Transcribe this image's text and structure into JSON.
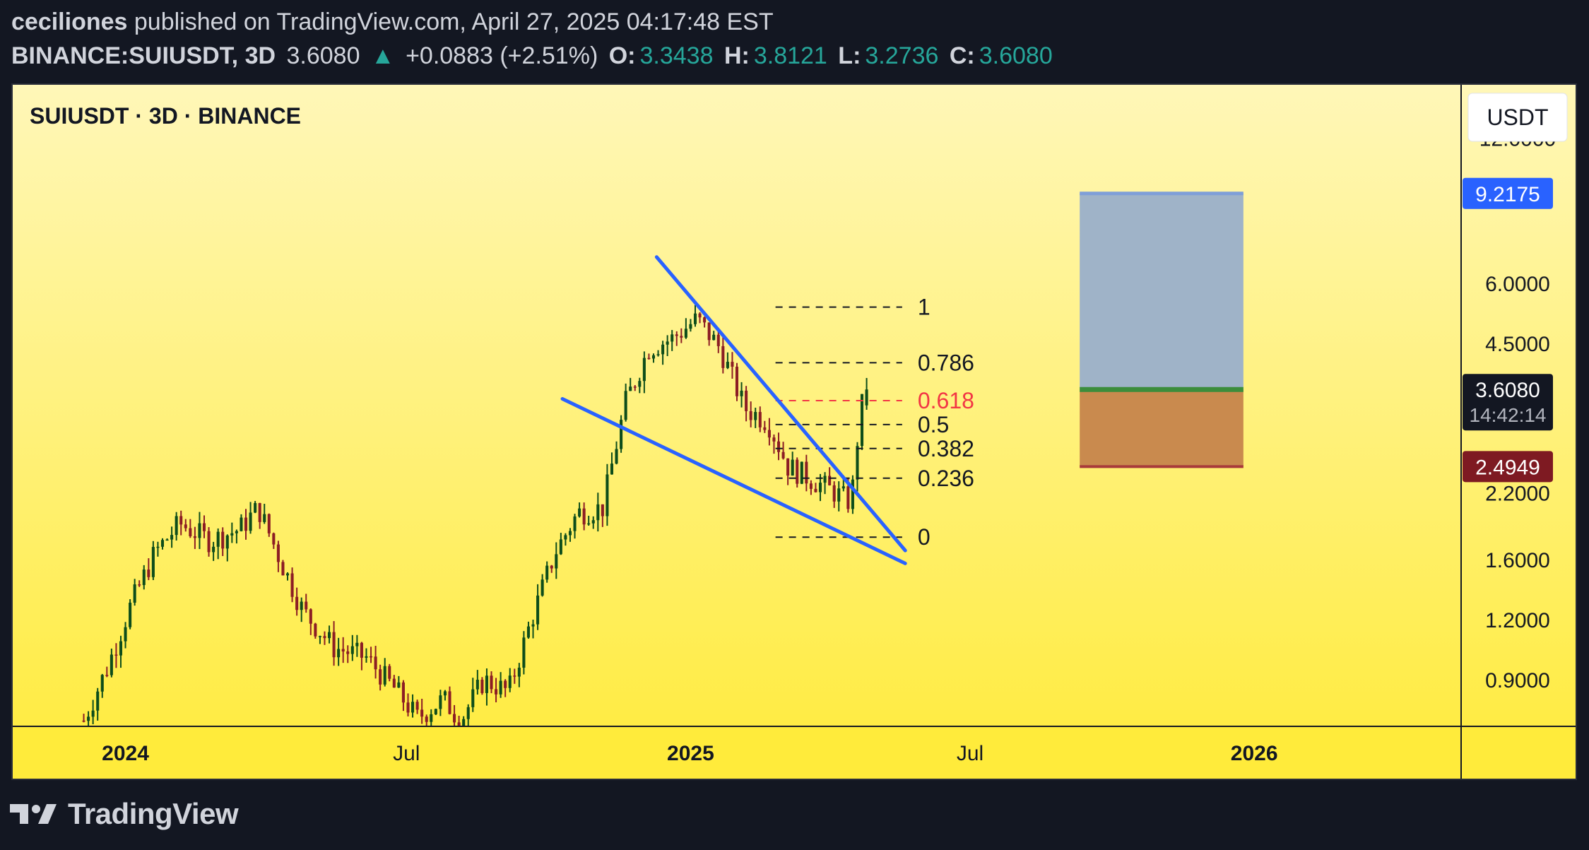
{
  "header": {
    "author": "ceciliones",
    "published_text": "published on TradingView.com, April 27, 2025 04:17:48 EST",
    "symbol": "BINANCE:SUIUSDT, 3D",
    "last_price": "3.6080",
    "change_arrow": "▲",
    "change": "+0.0883 (+2.51%)",
    "open_label": "O:",
    "open": "3.3438",
    "high_label": "H:",
    "high": "3.8121",
    "low_label": "L:",
    "low": "3.2736",
    "close_label": "C:",
    "close": "3.6080"
  },
  "footer": {
    "brand": "TradingView",
    "logo_icon": "tradingview-logo-icon"
  },
  "chart_data": {
    "type": "candlestick",
    "title": "SUIUSDT · 3D · BINANCE",
    "currency": "USDT",
    "scale": "log",
    "ylim": [
      0.72,
      15.5
    ],
    "xlim": [
      "2023-10-20",
      "2026-05-15"
    ],
    "y_ticks": [
      {
        "value": 12.0,
        "label": "12.0000"
      },
      {
        "value": 6.0,
        "label": "6.0000"
      },
      {
        "value": 4.5,
        "label": "4.5000"
      },
      {
        "value": 2.2,
        "label": "2.2000"
      },
      {
        "value": 1.6,
        "label": "1.6000"
      },
      {
        "value": 1.2,
        "label": "1.2000"
      },
      {
        "value": 0.9,
        "label": "0.9000"
      }
    ],
    "x_ticks": [
      {
        "date": "2024-01-01",
        "label": "2024",
        "bold": true
      },
      {
        "date": "2024-07-01",
        "label": "Jul",
        "bold": false
      },
      {
        "date": "2025-01-01",
        "label": "2025",
        "bold": true
      },
      {
        "date": "2025-07-01",
        "label": "Jul",
        "bold": false
      },
      {
        "date": "2026-01-01",
        "label": "2026",
        "bold": true
      }
    ],
    "price_labels": [
      {
        "value": 9.2175,
        "label": "9.2175",
        "color": "#2962ff"
      },
      {
        "value": 3.608,
        "label": "3.6080",
        "sublabel": "14:42:14",
        "color": "#131722"
      },
      {
        "value": 2.4949,
        "label": "2.4949",
        "color": "#7e1a22"
      }
    ],
    "candle_waypoints": [
      {
        "date": "2023-12-05",
        "price": 0.74
      },
      {
        "date": "2023-12-20",
        "price": 0.95
      },
      {
        "date": "2024-01-05",
        "price": 1.3
      },
      {
        "date": "2024-01-20",
        "price": 1.65
      },
      {
        "date": "2024-02-05",
        "price": 1.9
      },
      {
        "date": "2024-02-25",
        "price": 1.75
      },
      {
        "date": "2024-03-15",
        "price": 1.85
      },
      {
        "date": "2024-03-27",
        "price": 2.05
      },
      {
        "date": "2024-04-12",
        "price": 1.55
      },
      {
        "date": "2024-04-25",
        "price": 1.25
      },
      {
        "date": "2024-05-15",
        "price": 1.05
      },
      {
        "date": "2024-06-05",
        "price": 1.0
      },
      {
        "date": "2024-06-25",
        "price": 0.85
      },
      {
        "date": "2024-07-08",
        "price": 0.75
      },
      {
        "date": "2024-07-25",
        "price": 0.82
      },
      {
        "date": "2024-08-05",
        "price": 0.74
      },
      {
        "date": "2024-08-20",
        "price": 0.9
      },
      {
        "date": "2024-09-05",
        "price": 0.85
      },
      {
        "date": "2024-09-20",
        "price": 1.2
      },
      {
        "date": "2024-10-05",
        "price": 1.65
      },
      {
        "date": "2024-10-20",
        "price": 2.0
      },
      {
        "date": "2024-11-05",
        "price": 2.05
      },
      {
        "date": "2024-11-20",
        "price": 3.4
      },
      {
        "date": "2024-12-05",
        "price": 4.4
      },
      {
        "date": "2024-12-20",
        "price": 4.6
      },
      {
        "date": "2025-01-05",
        "price": 5.05
      },
      {
        "date": "2025-01-20",
        "price": 4.4
      },
      {
        "date": "2025-02-05",
        "price": 3.3
      },
      {
        "date": "2025-02-20",
        "price": 3.1
      },
      {
        "date": "2025-03-05",
        "price": 2.5
      },
      {
        "date": "2025-03-20",
        "price": 2.35
      },
      {
        "date": "2025-04-05",
        "price": 2.2
      },
      {
        "date": "2025-04-15",
        "price": 2.1
      },
      {
        "date": "2025-04-21",
        "price": 3.3
      },
      {
        "date": "2025-04-27",
        "price": 3.608
      }
    ],
    "trendlines": [
      {
        "from": {
          "date": "2024-12-10",
          "price": 6.8
        },
        "to": {
          "date": "2025-05-20",
          "price": 1.67
        },
        "color": "#2962ff"
      },
      {
        "from": {
          "date": "2024-10-10",
          "price": 3.45
        },
        "to": {
          "date": "2025-05-20",
          "price": 1.57
        },
        "color": "#2962ff"
      }
    ],
    "fibonacci": {
      "start_date": "2025-02-25",
      "end_date": "2025-05-18",
      "levels": [
        {
          "ratio": "1",
          "price": 5.35
        },
        {
          "ratio": "0.786",
          "price": 4.1
        },
        {
          "ratio": "0.618",
          "price": 3.42,
          "highlight": true
        },
        {
          "ratio": "0.5",
          "price": 3.05
        },
        {
          "ratio": "0.382",
          "price": 2.72
        },
        {
          "ratio": "0.236",
          "price": 2.36
        },
        {
          "ratio": "0",
          "price": 1.78
        }
      ]
    },
    "long_position": {
      "start_date": "2025-09-10",
      "end_date": "2025-12-25",
      "entry": 3.608,
      "target": 9.2175,
      "stop": 2.4949,
      "profit_color": "#9fb3c8",
      "loss_color": "#c98a4e"
    }
  }
}
